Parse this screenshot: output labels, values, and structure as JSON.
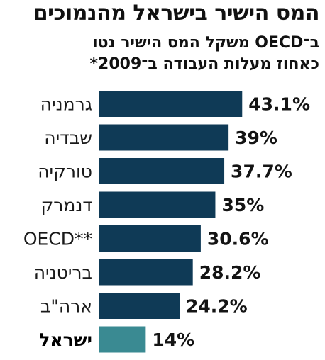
{
  "heading": {
    "title": "המס הישיר בישראל מהנמוכים",
    "subtitle_line1": "ב־OECD משקל המס הישיר נטו",
    "subtitle_line2": "כאחוז מעלות העבודה ב־2009*"
  },
  "colors": {
    "bar": "#0f3a56",
    "bar_highlight": "#3a8a92",
    "text": "#111111"
  },
  "chart_data": {
    "type": "bar",
    "orientation": "horizontal",
    "categories": [
      "גרמניה",
      "שבדיה",
      "טורקיה",
      "דנמרק",
      "OECD**",
      "בריטניה",
      "ארה\"ב",
      "ישראל"
    ],
    "values": [
      43.1,
      39,
      37.7,
      35,
      30.6,
      28.2,
      24.2,
      14
    ],
    "value_labels": [
      "43.1%",
      "39%",
      "37.7%",
      "35%",
      "30.6%",
      "28.2%",
      "24.2%",
      "14%"
    ],
    "highlight": "ישראל",
    "unit": "%",
    "grid": false,
    "legend": "none"
  }
}
